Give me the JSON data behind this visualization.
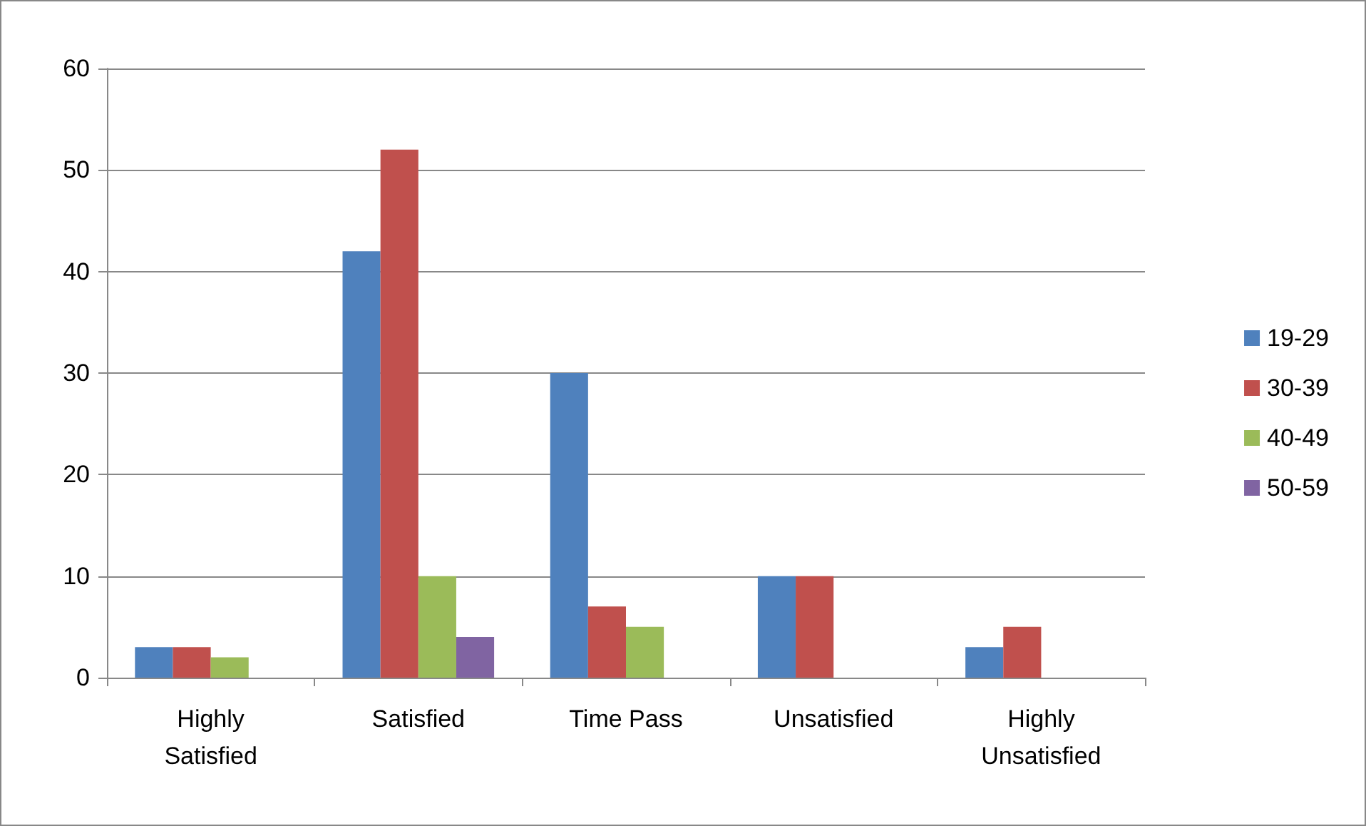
{
  "chart_data": {
    "type": "bar",
    "categories": [
      "Highly\nSatisfied",
      "Satisfied",
      "Time Pass",
      "Unsatisfied",
      "Highly\nUnsatisfied"
    ],
    "series": [
      {
        "name": "19-29",
        "color": "#4f81bd",
        "values": [
          3,
          42,
          30,
          10,
          3
        ]
      },
      {
        "name": "30-39",
        "color": "#c0504d",
        "values": [
          3,
          52,
          7,
          10,
          5
        ]
      },
      {
        "name": "40-49",
        "color": "#9bbb59",
        "values": [
          2,
          10,
          5,
          0,
          0
        ]
      },
      {
        "name": "50-59",
        "color": "#8064a2",
        "values": [
          0,
          4,
          0,
          0,
          0
        ]
      }
    ],
    "ylim": [
      0,
      60
    ],
    "yticks": [
      0,
      10,
      20,
      30,
      40,
      50,
      60
    ],
    "grid": "y",
    "legend": "right"
  }
}
